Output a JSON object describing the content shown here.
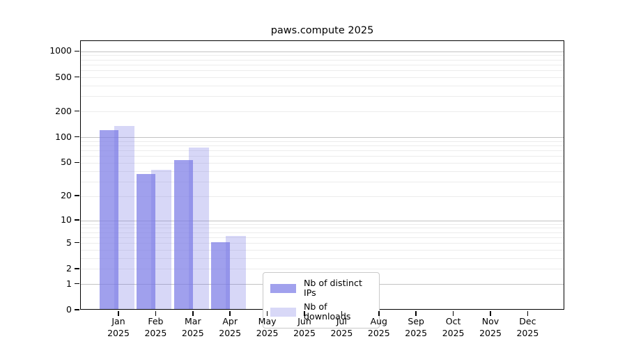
{
  "title": "paws.compute 2025",
  "legend": {
    "items": [
      {
        "label": "Nb of distinct IPs",
        "color": "#a1a1ed"
      },
      {
        "label": "Nb of downloads",
        "color": "#d8d8f7"
      }
    ]
  },
  "chart_data": {
    "type": "bar",
    "title": "paws.compute 2025",
    "categories": [
      "Jan",
      "Feb",
      "Mar",
      "Apr",
      "May",
      "Jun",
      "Jul",
      "Aug",
      "Sep",
      "Oct",
      "Nov",
      "Dec"
    ],
    "year_label": "2025",
    "series": [
      {
        "name": "Nb of distinct IPs",
        "values": [
          118,
          36,
          52,
          5,
          0,
          0,
          0,
          0,
          0,
          0,
          0,
          0
        ]
      },
      {
        "name": "Nb of downloads",
        "values": [
          131,
          40,
          73,
          6,
          0,
          0,
          0,
          0,
          0,
          0,
          0,
          0
        ]
      }
    ],
    "y_scale": "log1p",
    "y_ticks": [
      0,
      1,
      2,
      5,
      10,
      20,
      50,
      100,
      200,
      500,
      1000
    ],
    "y_minor_gridlines": [
      2,
      3,
      4,
      5,
      6,
      7,
      8,
      9,
      20,
      30,
      40,
      50,
      60,
      70,
      80,
      90,
      200,
      300,
      400,
      500,
      600,
      700,
      800,
      900
    ],
    "y_major_gridlines": [
      1,
      10,
      100,
      1000
    ],
    "ylim": [
      0,
      1330
    ],
    "xlabel": "",
    "ylabel": "",
    "grid": "horizontal",
    "legend_position": "inside-bottom-center",
    "colors": {
      "bar_base": "#7c7ce6",
      "distinct_ips_fill": "#a1a1ed",
      "downloads_fill": "#d8d8f7",
      "major_grid": "#c2c2c2",
      "minor_grid": "#ececec",
      "spine": "#000000",
      "background": "#ffffff"
    }
  }
}
